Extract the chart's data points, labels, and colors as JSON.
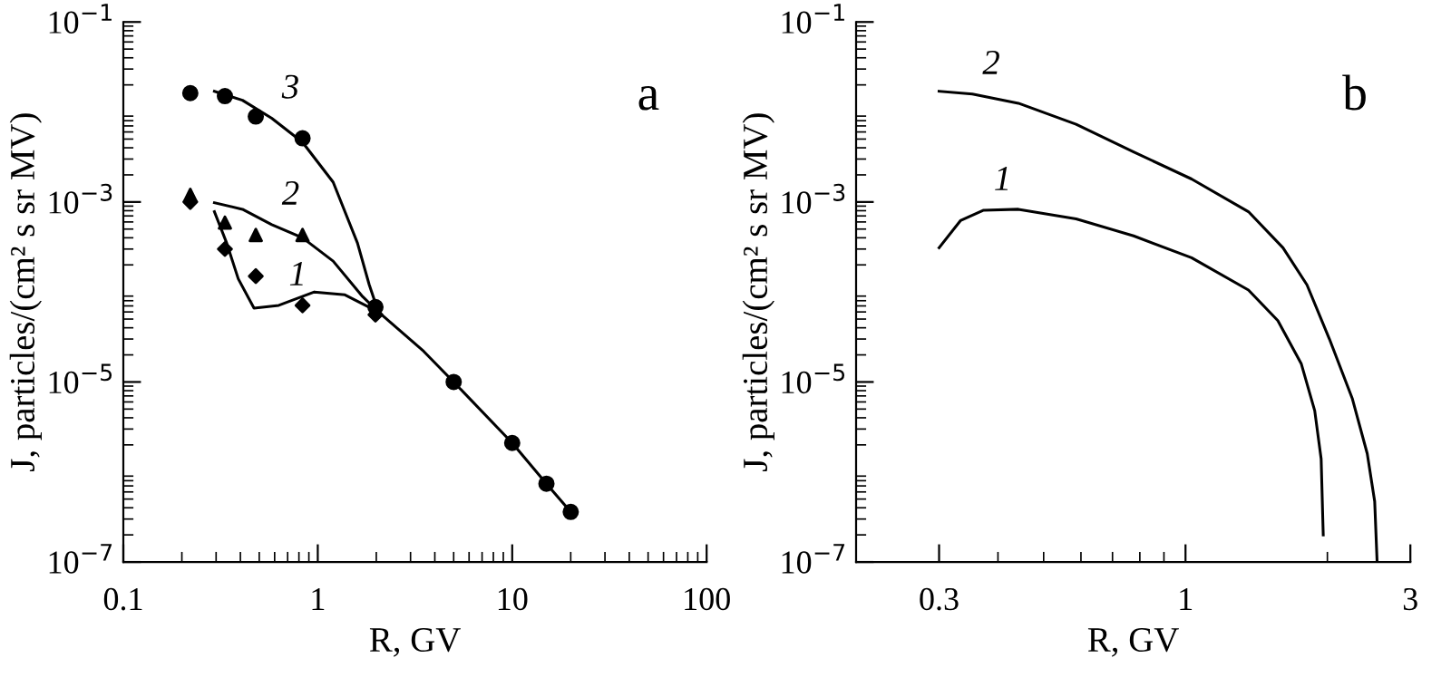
{
  "chart_data": [
    {
      "type": "line",
      "xlabel": "R, GV",
      "ylabel": "J, particles/(cm² s sr MV)",
      "log": "xy",
      "xlim": [
        0.1,
        100
      ],
      "ylim": [
        1e-07,
        0.1
      ],
      "xticks": [
        0.1,
        1,
        10,
        100
      ],
      "yticks": [
        {
          "value": 0.1,
          "label": "10$^{−1}$"
        },
        {
          "value": 0.001,
          "label": "10$^{−3}$"
        },
        {
          "value": 1e-05,
          "label": "10$^{−5}$"
        },
        {
          "value": 1e-07,
          "label": "10$^{−7}$"
        }
      ],
      "grid": false,
      "legend": false,
      "annotations": [
        "a",
        {
          "text": "3",
          "x": 0.58,
          "y": 0.0085
        },
        {
          "text": "2",
          "x": 0.58,
          "y": 0.00056
        },
        {
          "text": "1",
          "x": 0.63,
          "y": 7.1e-05
        }
      ],
      "series": [
        {
          "color": "#000000",
          "marker": "none",
          "line_style": "solid",
          "x": [
            0.294,
            0.41,
            0.58,
            0.835,
            1.2,
            1.6,
            1.84,
            2.05,
            3.5,
            5,
            10,
            15,
            20
          ],
          "values": [
            0.017,
            0.0135,
            0.0085,
            0.0046,
            0.00166,
            0.00035,
            0.00012,
            6e-05,
            2.2e-05,
            1e-05,
            2.1e-06,
            7.4e-07,
            3.6e-07
          ]
        },
        {
          "color": "#000000",
          "marker": "none",
          "line_style": "solid",
          "x": [
            0.294,
            0.41,
            0.58,
            0.835,
            1.2,
            1.7,
            2.05
          ],
          "values": [
            0.00098,
            0.00083,
            0.00056,
            0.0004,
            0.00022,
            8.9e-05,
            6e-05
          ]
        },
        {
          "color": "#000000",
          "marker": "none",
          "line_style": "solid",
          "x": [
            0.294,
            0.34,
            0.39,
            0.47,
            0.63,
            0.96,
            1.38,
            2.05
          ],
          "values": [
            0.00078,
            0.00035,
            0.00014,
            6.6e-05,
            7.1e-05,
            0.0001,
            9.3e-05,
            6e-05
          ]
        },
        {
          "type": "scatter",
          "color": "#000000",
          "marker": "circle",
          "x": [
            0.221,
            0.333,
            0.48,
            0.835,
            1.98,
            5,
            10,
            15,
            20
          ],
          "values": [
            0.0162,
            0.015,
            0.0089,
            0.0051,
            6.8e-05,
            1e-05,
            2.1e-06,
            7.4e-07,
            3.6e-07
          ]
        },
        {
          "type": "scatter",
          "color": "#000000",
          "marker": "triangle",
          "x": [
            0.221,
            0.333,
            0.48,
            0.835
          ],
          "values": [
            0.0012,
            0.00059,
            0.00043,
            0.00043
          ]
        },
        {
          "type": "scatter",
          "color": "#000000",
          "marker": "diamond",
          "x": [
            0.221,
            0.333,
            0.48,
            0.835,
            1.98
          ],
          "values": [
            0.001,
            0.0003,
            0.00015,
            7.1e-05,
            5.6e-05
          ]
        }
      ]
    },
    {
      "type": "line",
      "xlabel": "R, GV",
      "ylabel": "J, particles/(cm² s sr MV)",
      "log": "xy",
      "xlim": [
        0.2,
        3
      ],
      "ylim": [
        1e-07,
        0.1
      ],
      "xticks": [
        0.3,
        1,
        3
      ],
      "yticks": [
        {
          "value": 0.1,
          "label": "10$^{−1}$"
        },
        {
          "value": 0.001,
          "label": "10$^{−3}$"
        },
        {
          "value": 1e-05,
          "label": "10$^{−5}$"
        },
        {
          "value": 1e-07,
          "label": "10$^{−7}$"
        }
      ],
      "grid": false,
      "legend": false,
      "annotations": [
        "b",
        {
          "text": "2",
          "x": 0.353,
          "y": 0.0158
        },
        {
          "text": "1",
          "x": 0.373,
          "y": 0.00081
        }
      ],
      "series": [
        {
          "color": "#000000",
          "marker": "none",
          "line_style": "solid",
          "x": [
            0.3,
            0.353,
            0.442,
            0.586,
            0.776,
            1.03,
            1.36,
            1.61,
            1.81,
            2.02,
            2.26,
            2.43,
            2.52,
            2.55
          ],
          "values": [
            0.017,
            0.0158,
            0.0125,
            0.0073,
            0.0036,
            0.0018,
            0.00078,
            0.00031,
            0.00012,
            3e-05,
            6.5e-06,
            1.6e-06,
            4.7e-07,
            1e-07
          ]
        },
        {
          "color": "#000000",
          "marker": "none",
          "line_style": "solid",
          "x": [
            0.3,
            0.333,
            0.373,
            0.442,
            0.586,
            0.776,
            1.03,
            1.36,
            1.57,
            1.76,
            1.88,
            1.94,
            1.96
          ],
          "values": [
            0.00031,
            0.00062,
            0.00081,
            0.00083,
            0.00065,
            0.00042,
            0.00024,
            0.000105,
            4.8e-05,
            1.6e-05,
            4.8e-06,
            1.4e-06,
            2e-07
          ]
        }
      ]
    }
  ]
}
